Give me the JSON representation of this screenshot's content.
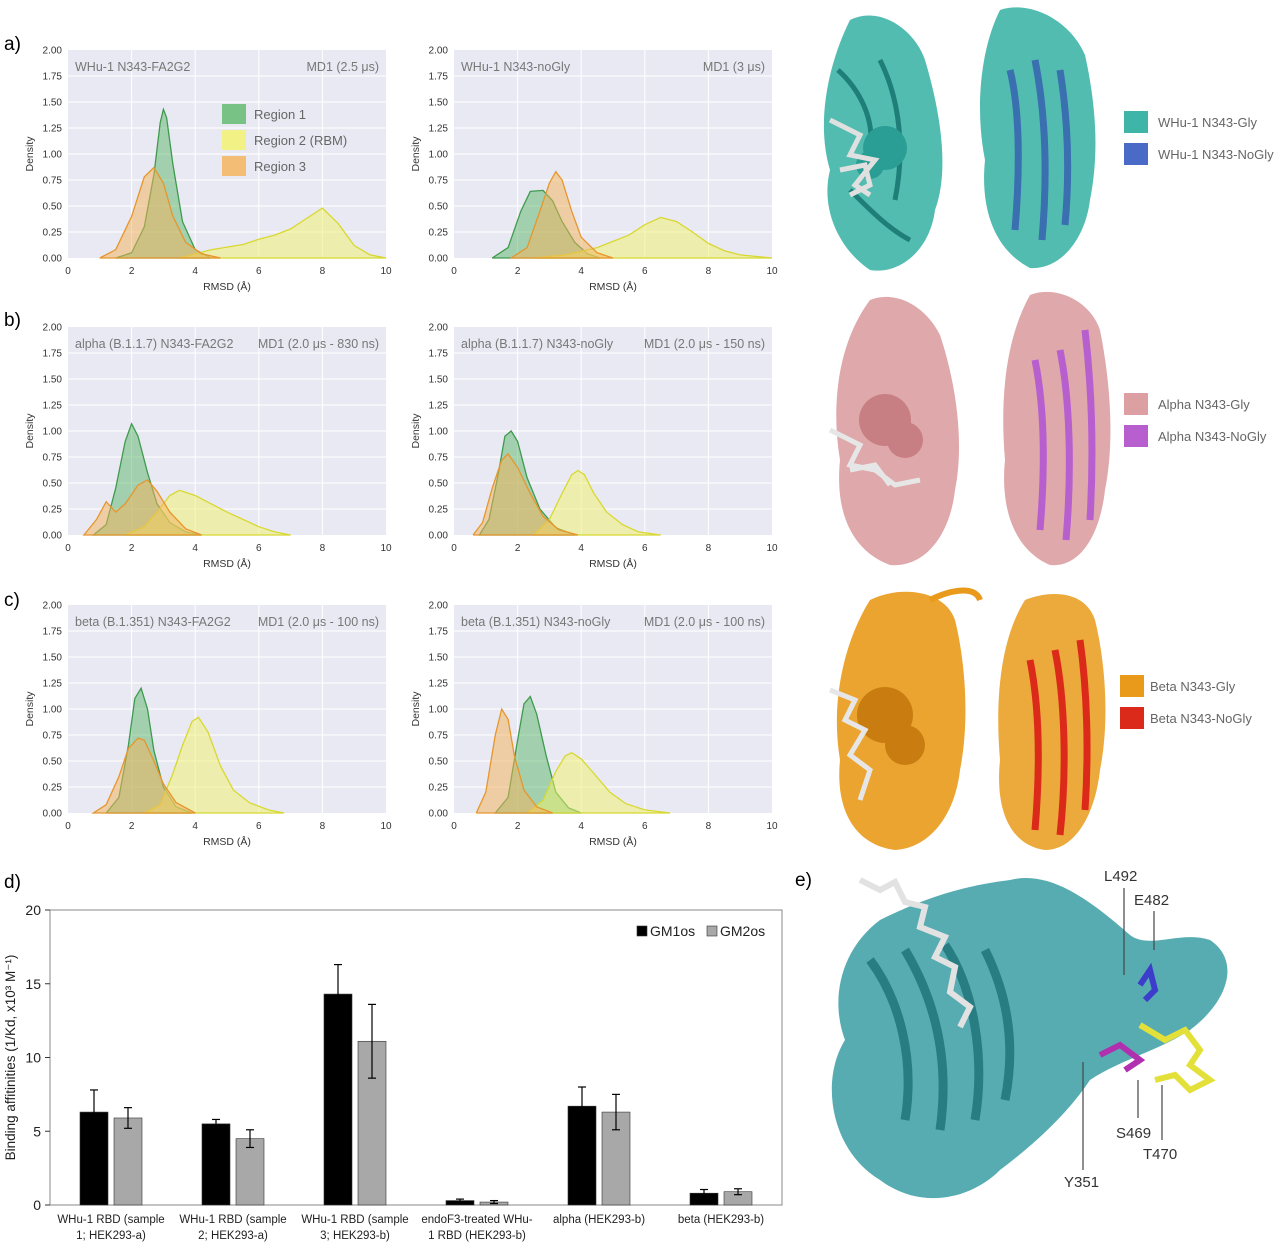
{
  "panels": {
    "a": {
      "letter": "a)"
    },
    "b": {
      "letter": "b)"
    },
    "c": {
      "letter": "c)"
    },
    "d": {
      "letter": "d)"
    },
    "e": {
      "letter": "e)"
    }
  },
  "colors": {
    "region1": "#5cb86a",
    "region2": "#f2f26a",
    "region3": "#f6b255",
    "plot_bg": "#e9e9f3",
    "whu1_gly": "#3fb5a8",
    "whu1_nogly": "#4a6ac8",
    "alpha_gly": "#dc9fa2",
    "alpha_nogly": "#b85fcf",
    "beta_gly": "#e99a1a",
    "beta_nogly": "#dc2a1a",
    "protein_e": "#3a9ea3"
  },
  "density_axes": {
    "ylabel": "Density",
    "xlabel": "RMSD (Å)",
    "xticks": [
      "0",
      "2",
      "4",
      "6",
      "8",
      "10"
    ],
    "yticks": [
      "0.00",
      "0.25",
      "0.50",
      "0.75",
      "1.00",
      "1.25",
      "1.50",
      "1.75",
      "2.00"
    ]
  },
  "legend": {
    "items": [
      "Region 1",
      "Region 2 (RBM)",
      "Region 3"
    ]
  },
  "structure_legends": {
    "a": [
      "WHu-1 N343-Gly",
      "WHu-1 N343-NoGly"
    ],
    "b": [
      "Alpha N343-Gly",
      "Alpha N343-NoGly"
    ],
    "c": [
      "Beta N343-Gly",
      "Beta N343-NoGly"
    ]
  },
  "residue_labels": [
    "L492",
    "E482",
    "S469",
    "T470",
    "Y351"
  ],
  "chart_data": [
    {
      "type": "area",
      "panel": "a-left",
      "title_left": "WHu-1  N343-FA2G2",
      "title_right": "MD1 (2.5 μs)",
      "xlabel": "RMSD (Å)",
      "ylabel": "Density",
      "xlim": [
        0,
        10
      ],
      "ylim": [
        0,
        2
      ],
      "grid": true,
      "legend": "upper-center",
      "series": [
        {
          "name": "Region 1",
          "x": [
            1.5,
            2.0,
            2.4,
            2.7,
            2.9,
            3.0,
            3.1,
            3.3,
            3.6,
            4.0,
            4.5
          ],
          "y": [
            0,
            0.05,
            0.3,
            0.8,
            1.3,
            1.43,
            1.35,
            0.9,
            0.35,
            0.08,
            0
          ]
        },
        {
          "name": "Region 2 (RBM)",
          "x": [
            3.5,
            4.5,
            5.5,
            6.0,
            6.5,
            7.0,
            7.5,
            8.0,
            8.5,
            9.0,
            9.5,
            10.0
          ],
          "y": [
            0,
            0.08,
            0.13,
            0.18,
            0.22,
            0.28,
            0.38,
            0.48,
            0.33,
            0.12,
            0.03,
            0
          ]
        },
        {
          "name": "Region 3",
          "x": [
            1.0,
            1.5,
            2.0,
            2.4,
            2.7,
            3.0,
            3.3,
            3.7,
            4.2,
            4.8
          ],
          "y": [
            0,
            0.08,
            0.4,
            0.78,
            0.87,
            0.72,
            0.4,
            0.15,
            0.04,
            0
          ]
        }
      ]
    },
    {
      "type": "area",
      "panel": "a-right",
      "title_left": "WHu-1  N343-noGly",
      "title_right": "MD1 (3 μs)",
      "xlabel": "RMSD (Å)",
      "ylabel": "Density",
      "xlim": [
        0,
        10
      ],
      "ylim": [
        0,
        2
      ],
      "grid": true,
      "series": [
        {
          "name": "Region 1",
          "x": [
            1.2,
            1.7,
            2.1,
            2.4,
            2.8,
            3.1,
            3.4,
            3.8,
            4.2,
            4.6
          ],
          "y": [
            0,
            0.1,
            0.45,
            0.64,
            0.65,
            0.55,
            0.35,
            0.15,
            0.04,
            0
          ]
        },
        {
          "name": "Region 2 (RBM)",
          "x": [
            2.5,
            3.5,
            4.5,
            5.5,
            6.0,
            6.5,
            7.0,
            7.5,
            8.0,
            8.5,
            9.0,
            10.0
          ],
          "y": [
            0,
            0.03,
            0.1,
            0.22,
            0.32,
            0.39,
            0.35,
            0.25,
            0.14,
            0.07,
            0.03,
            0
          ]
        },
        {
          "name": "Region 3",
          "x": [
            1.8,
            2.3,
            2.7,
            3.0,
            3.2,
            3.4,
            3.7,
            4.0,
            4.5,
            5.0
          ],
          "y": [
            0,
            0.1,
            0.45,
            0.72,
            0.83,
            0.75,
            0.45,
            0.2,
            0.05,
            0
          ]
        }
      ]
    },
    {
      "type": "area",
      "panel": "b-left",
      "title_left": "alpha (B.1.1.7) N343-FA2G2",
      "title_right": "MD1 (2.0 μs - 830 ns)",
      "xlabel": "RMSD (Å)",
      "ylabel": "Density",
      "xlim": [
        0,
        10
      ],
      "ylim": [
        0,
        2
      ],
      "grid": true,
      "series": [
        {
          "name": "Region 1",
          "x": [
            0.8,
            1.2,
            1.5,
            1.8,
            2.0,
            2.2,
            2.5,
            2.8,
            3.2,
            3.7,
            4.2
          ],
          "y": [
            0,
            0.1,
            0.45,
            0.9,
            1.07,
            0.95,
            0.6,
            0.3,
            0.12,
            0.03,
            0
          ]
        },
        {
          "name": "Region 2 (RBM)",
          "x": [
            1.8,
            2.4,
            2.8,
            3.2,
            3.5,
            4.0,
            4.5,
            5.0,
            5.5,
            6.0,
            6.5,
            7.0
          ],
          "y": [
            0,
            0.08,
            0.22,
            0.38,
            0.43,
            0.38,
            0.3,
            0.22,
            0.15,
            0.08,
            0.03,
            0
          ]
        },
        {
          "name": "Region 3",
          "x": [
            0.5,
            0.9,
            1.2,
            1.5,
            1.8,
            2.2,
            2.5,
            2.8,
            3.2,
            3.7,
            4.2
          ],
          "y": [
            0,
            0.15,
            0.32,
            0.22,
            0.3,
            0.48,
            0.53,
            0.42,
            0.22,
            0.06,
            0
          ]
        }
      ]
    },
    {
      "type": "area",
      "panel": "b-right",
      "title_left": "alpha (B.1.1.7) N343-noGly",
      "title_right": "MD1 (2.0 μs - 150 ns)",
      "xlabel": "RMSD (Å)",
      "ylabel": "Density",
      "xlim": [
        0,
        10
      ],
      "ylim": [
        0,
        2
      ],
      "grid": true,
      "series": [
        {
          "name": "Region 1",
          "x": [
            0.8,
            1.1,
            1.4,
            1.6,
            1.8,
            2.0,
            2.3,
            2.7,
            3.2,
            3.8
          ],
          "y": [
            0,
            0.15,
            0.6,
            0.95,
            1.0,
            0.9,
            0.55,
            0.25,
            0.07,
            0
          ]
        },
        {
          "name": "Region 2 (RBM)",
          "x": [
            2.5,
            3.0,
            3.4,
            3.7,
            3.9,
            4.1,
            4.4,
            4.8,
            5.3,
            5.8,
            6.5
          ],
          "y": [
            0,
            0.15,
            0.4,
            0.58,
            0.62,
            0.58,
            0.4,
            0.22,
            0.1,
            0.03,
            0
          ]
        },
        {
          "name": "Region 3",
          "x": [
            0.6,
            0.9,
            1.2,
            1.5,
            1.7,
            2.0,
            2.4,
            2.8,
            3.3,
            3.9
          ],
          "y": [
            0,
            0.12,
            0.45,
            0.72,
            0.78,
            0.65,
            0.4,
            0.18,
            0.05,
            0
          ]
        }
      ]
    },
    {
      "type": "area",
      "panel": "c-left",
      "title_left": "beta (B.1.351) N343-FA2G2",
      "title_right": "MD1 (2.0 μs - 100 ns)",
      "xlabel": "RMSD (Å)",
      "ylabel": "Density",
      "xlim": [
        0,
        10
      ],
      "ylim": [
        0,
        2
      ],
      "grid": true,
      "series": [
        {
          "name": "Region 1",
          "x": [
            1.2,
            1.6,
            1.9,
            2.1,
            2.3,
            2.5,
            2.7,
            3.0,
            3.4,
            3.9
          ],
          "y": [
            0,
            0.15,
            0.65,
            1.1,
            1.2,
            1.0,
            0.6,
            0.25,
            0.06,
            0
          ]
        },
        {
          "name": "Region 2 (RBM)",
          "x": [
            2.4,
            2.9,
            3.3,
            3.6,
            3.9,
            4.1,
            4.4,
            4.8,
            5.2,
            5.7,
            6.3,
            6.8
          ],
          "y": [
            0,
            0.08,
            0.38,
            0.65,
            0.88,
            0.92,
            0.78,
            0.45,
            0.22,
            0.1,
            0.03,
            0
          ]
        },
        {
          "name": "Region 3",
          "x": [
            0.8,
            1.2,
            1.6,
            1.9,
            2.2,
            2.4,
            2.7,
            3.0,
            3.4,
            4.0
          ],
          "y": [
            0,
            0.08,
            0.35,
            0.62,
            0.72,
            0.7,
            0.5,
            0.28,
            0.1,
            0
          ]
        }
      ]
    },
    {
      "type": "area",
      "panel": "c-right",
      "title_left": "beta (B.1.351) N343-noGly",
      "title_right": "MD1 (2.0 μs - 100 ns)",
      "xlabel": "RMSD (Å)",
      "ylabel": "Density",
      "xlim": [
        0,
        10
      ],
      "ylim": [
        0,
        2
      ],
      "grid": true,
      "series": [
        {
          "name": "Region 1",
          "x": [
            1.3,
            1.7,
            2.0,
            2.2,
            2.4,
            2.6,
            2.9,
            3.2,
            3.6,
            4.0
          ],
          "y": [
            0,
            0.15,
            0.7,
            1.05,
            1.12,
            0.95,
            0.55,
            0.2,
            0.05,
            0
          ]
        },
        {
          "name": "Region 2 (RBM)",
          "x": [
            2.3,
            2.8,
            3.2,
            3.5,
            3.7,
            4.0,
            4.4,
            4.9,
            5.4,
            6.0,
            6.8
          ],
          "y": [
            0,
            0.12,
            0.4,
            0.55,
            0.58,
            0.52,
            0.38,
            0.2,
            0.09,
            0.03,
            0
          ]
        },
        {
          "name": "Region 3",
          "x": [
            0.7,
            1.0,
            1.3,
            1.5,
            1.7,
            1.9,
            2.2,
            2.6,
            3.1
          ],
          "y": [
            0,
            0.2,
            0.75,
            1.0,
            0.9,
            0.55,
            0.22,
            0.06,
            0
          ]
        }
      ]
    },
    {
      "type": "bar",
      "panel": "d",
      "ylabel": "Binding affitinities (1/Kd, x10³ M⁻¹)",
      "ylim": [
        0,
        20
      ],
      "yticks": [
        "0",
        "5",
        "10",
        "15",
        "20"
      ],
      "categories": [
        [
          "WHu-1 RBD (sample",
          "1; HEK293-a)"
        ],
        [
          "WHu-1 RBD (sample",
          "2; HEK293-a)"
        ],
        [
          "WHu-1 RBD (sample",
          "3; HEK293-b)"
        ],
        [
          "endoF3-treated WHu-",
          "1 RBD (HEK293-b)"
        ],
        [
          "alpha (HEK293-b)"
        ],
        [
          "beta (HEK293-b)"
        ]
      ],
      "legend": "top-right",
      "series": [
        {
          "name": "GM1os",
          "color": "#000000",
          "values": [
            6.3,
            5.5,
            14.3,
            0.3,
            6.7,
            0.8
          ],
          "errors": [
            1.5,
            0.3,
            2.0,
            0.1,
            1.3,
            0.25
          ]
        },
        {
          "name": "GM2os",
          "color": "#a8a8a8",
          "values": [
            5.9,
            4.5,
            11.1,
            0.2,
            6.3,
            0.9
          ],
          "errors": [
            0.7,
            0.6,
            2.5,
            0.1,
            1.2,
            0.2
          ]
        }
      ]
    }
  ]
}
